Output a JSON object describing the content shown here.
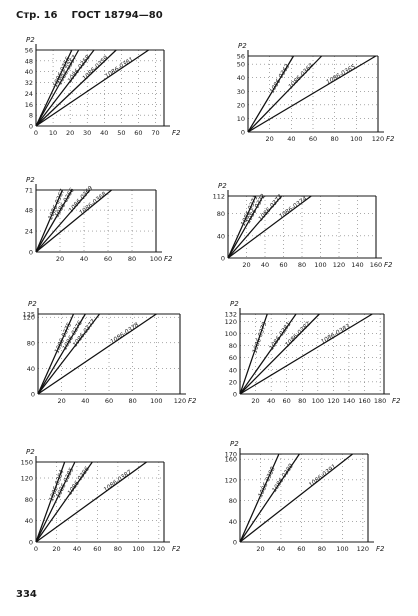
{
  "header": {
    "page": "Стр. 16",
    "standard": "ГОСТ 18794—80"
  },
  "footer": {
    "number": "334"
  },
  "chart_data": [
    {
      "type": "line",
      "ylabel": "P2",
      "xlabel": "F2",
      "xticks": [
        "0",
        "10",
        "20",
        "30",
        "40",
        "50",
        "60",
        "70"
      ],
      "xlim": [
        0,
        75
      ],
      "yticks": [
        "0",
        "8",
        "16",
        "24",
        "32",
        "40",
        "48",
        "56"
      ],
      "ylim": [
        0,
        56
      ],
      "series": [
        {
          "name": "1086-0356",
          "x": [
            0,
            21
          ],
          "y": [
            0,
            56
          ]
        },
        {
          "name": "1086-0357",
          "x": [
            0,
            25
          ],
          "y": [
            0,
            56
          ]
        },
        {
          "name": "1086-0358",
          "x": [
            0,
            34
          ],
          "y": [
            0,
            56
          ]
        },
        {
          "name": "1086-0359",
          "x": [
            0,
            47
          ],
          "y": [
            0,
            56
          ]
        },
        {
          "name": "1086-0361",
          "x": [
            0,
            66
          ],
          "y": [
            0,
            56
          ]
        }
      ]
    },
    {
      "type": "line",
      "ylabel": "P2",
      "xlabel": "F2",
      "xticks": [
        "20",
        "40",
        "60",
        "80",
        "100",
        "120"
      ],
      "xlim": [
        0,
        120
      ],
      "yticks": [
        "0",
        "10",
        "20",
        "30",
        "40",
        "50",
        "56"
      ],
      "ylim": [
        0,
        56
      ],
      "series": [
        {
          "name": "1086-0363",
          "x": [
            0,
            42
          ],
          "y": [
            0,
            56
          ]
        },
        {
          "name": "1086-0364",
          "x": [
            0,
            68
          ],
          "y": [
            0,
            56
          ]
        },
        {
          "name": "1086-0365",
          "x": [
            0,
            118
          ],
          "y": [
            0,
            56
          ]
        }
      ]
    },
    {
      "type": "line",
      "ylabel": "P2",
      "xlabel": "F2",
      "xticks": [
        "20",
        "40",
        "60",
        "80",
        "100"
      ],
      "xlim": [
        0,
        100
      ],
      "yticks": [
        "0",
        "24",
        "48",
        "71"
      ],
      "ylim": [
        0,
        71
      ],
      "series": [
        {
          "name": "1086-0367",
          "x": [
            0,
            22
          ],
          "y": [
            0,
            71
          ]
        },
        {
          "name": "1086-0366",
          "x": [
            0,
            30
          ],
          "y": [
            0,
            71
          ]
        },
        {
          "name": "1086-0368",
          "x": [
            0,
            63
          ],
          "y": [
            0,
            71
          ]
        },
        {
          "name": "1086-0369",
          "x": [
            0,
            45
          ],
          "y": [
            0,
            71
          ]
        }
      ]
    },
    {
      "type": "line",
      "ylabel": "P2",
      "xlabel": "F2",
      "xticks": [
        "20",
        "40",
        "60",
        "80",
        "100",
        "120",
        "140",
        "160"
      ],
      "xlim": [
        0,
        160
      ],
      "yticks": [
        "0",
        "40",
        "80",
        "112"
      ],
      "ylim": [
        0,
        112
      ],
      "series": [
        {
          "name": "1086-0371",
          "x": [
            0,
            30
          ],
          "y": [
            0,
            112
          ]
        },
        {
          "name": "1086-0372",
          "x": [
            0,
            38
          ],
          "y": [
            0,
            112
          ]
        },
        {
          "name": "1086-0373",
          "x": [
            0,
            58
          ],
          "y": [
            0,
            112
          ]
        },
        {
          "name": "1086-0374",
          "x": [
            0,
            90
          ],
          "y": [
            0,
            112
          ]
        }
      ]
    },
    {
      "type": "line",
      "ylabel": "P2",
      "xlabel": "F2",
      "xticks": [
        "20",
        "40",
        "60",
        "80",
        "100",
        "120"
      ],
      "xlim": [
        0,
        120
      ],
      "yticks": [
        "0",
        "40",
        "80",
        "120",
        "125"
      ],
      "ylim": [
        0,
        125
      ],
      "series": [
        {
          "name": "1086-0375",
          "x": [
            0,
            30
          ],
          "y": [
            0,
            125
          ]
        },
        {
          "name": "1086-0376",
          "x": [
            0,
            40
          ],
          "y": [
            0,
            125
          ]
        },
        {
          "name": "1086-0377",
          "x": [
            0,
            52
          ],
          "y": [
            0,
            125
          ]
        },
        {
          "name": "1086-0378",
          "x": [
            0,
            100
          ],
          "y": [
            0,
            125
          ]
        }
      ]
    },
    {
      "type": "line",
      "ylabel": "P2",
      "xlabel": "F2",
      "xticks": [
        "20",
        "40",
        "60",
        "80",
        "100",
        "120",
        "140",
        "160",
        "180"
      ],
      "xlim": [
        0,
        185
      ],
      "yticks": [
        "0",
        "20",
        "40",
        "60",
        "80",
        "100",
        "120",
        "132"
      ],
      "ylim": [
        0,
        132
      ],
      "series": [
        {
          "name": "1086-0379",
          "x": [
            0,
            35
          ],
          "y": [
            0,
            132
          ]
        },
        {
          "name": "1086-0381",
          "x": [
            0,
            72
          ],
          "y": [
            0,
            132
          ]
        },
        {
          "name": "1086-0382",
          "x": [
            0,
            102
          ],
          "y": [
            0,
            132
          ]
        },
        {
          "name": "1086-0383",
          "x": [
            0,
            170
          ],
          "y": [
            0,
            132
          ]
        }
      ]
    },
    {
      "type": "line",
      "ylabel": "P2",
      "xlabel": "F2",
      "xticks": [
        "0",
        "20",
        "40",
        "60",
        "80",
        "100",
        "120"
      ],
      "xlim": [
        0,
        125
      ],
      "yticks": [
        "0",
        "40",
        "80",
        "120",
        "150"
      ],
      "ylim": [
        0,
        150
      ],
      "series": [
        {
          "name": "1086-0384",
          "x": [
            0,
            28
          ],
          "y": [
            0,
            150
          ]
        },
        {
          "name": "1086-0385",
          "x": [
            0,
            38
          ],
          "y": [
            0,
            150
          ]
        },
        {
          "name": "1086-0386",
          "x": [
            0,
            55
          ],
          "y": [
            0,
            150
          ]
        },
        {
          "name": "1086-0387",
          "x": [
            0,
            108
          ],
          "y": [
            0,
            150
          ]
        }
      ]
    },
    {
      "type": "line",
      "ylabel": "P2",
      "xlabel": "F2",
      "xticks": [
        "20",
        "40",
        "60",
        "80",
        "100",
        "120"
      ],
      "xlim": [
        0,
        125
      ],
      "yticks": [
        "0",
        "40",
        "80",
        "120",
        "160",
        "170"
      ],
      "ylim": [
        0,
        170
      ],
      "series": [
        {
          "name": "1086-0388",
          "x": [
            0,
            38
          ],
          "y": [
            0,
            170
          ]
        },
        {
          "name": "1086-0389",
          "x": [
            0,
            58
          ],
          "y": [
            0,
            170
          ]
        },
        {
          "name": "1086-0391",
          "x": [
            0,
            110
          ],
          "y": [
            0,
            170
          ]
        }
      ]
    }
  ]
}
